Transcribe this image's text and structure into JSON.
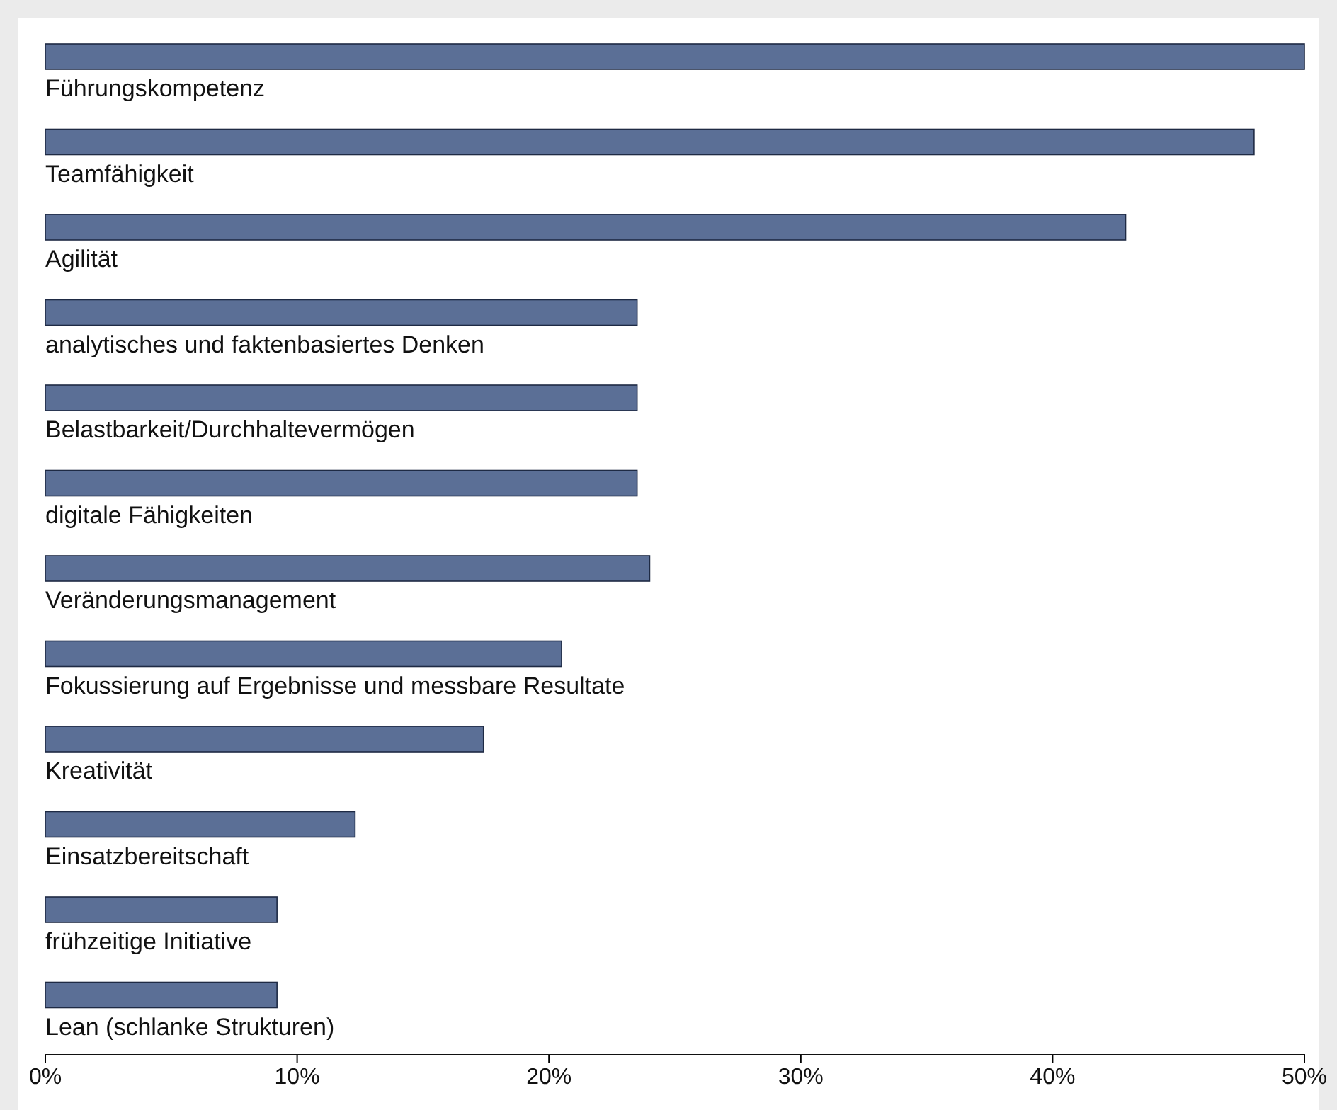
{
  "chart_data": {
    "type": "bar",
    "orientation": "horizontal",
    "categories": [
      "Führungskompetenz",
      "Teamfähigkeit",
      "Agilität",
      "analytisches und faktenbasiertes Denken",
      "Belastbarkeit/Durchhaltevermögen",
      "digitale Fähigkeiten",
      "Veränderungsmanagement",
      "Fokussierung auf Ergebnisse und messbare Resultate",
      "Kreativität",
      "Einsatzbereitschaft",
      "frühzeitige Initiative",
      "Lean (schlanke Strukturen)"
    ],
    "values": [
      50,
      48,
      42.9,
      23.5,
      23.5,
      23.5,
      24,
      20.5,
      17.4,
      12.3,
      9.2,
      9.2
    ],
    "color": "#5b6f96",
    "xlim": [
      0,
      50
    ],
    "xticks": [
      {
        "value": 0,
        "label": "0%"
      },
      {
        "value": 10,
        "label": "10%"
      },
      {
        "value": 20,
        "label": "20%"
      },
      {
        "value": 30,
        "label": "30%"
      },
      {
        "value": 40,
        "label": "40%"
      },
      {
        "value": 50,
        "label": "50%"
      }
    ],
    "grid": false
  }
}
